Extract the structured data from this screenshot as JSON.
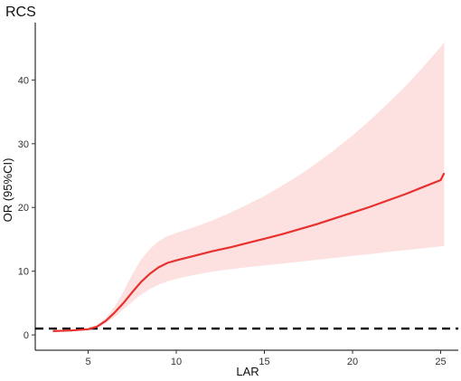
{
  "chart_data": {
    "type": "line",
    "title": "RCS",
    "xlabel": "LAR",
    "ylabel": "OR (95%CI)",
    "xlim": [
      2,
      26
    ],
    "ylim": [
      -2.4,
      49
    ],
    "x_ticks": [
      5,
      10,
      15,
      20,
      25
    ],
    "y_ticks": [
      0,
      10,
      20,
      30,
      40
    ],
    "grid": false,
    "legend": "none",
    "reference_line": {
      "y": 1,
      "style": "dashed",
      "color": "#000000"
    },
    "series": [
      {
        "type": "line",
        "color": "#e8312e",
        "x": [
          3,
          4,
          5,
          5.5,
          6,
          6.5,
          7,
          7.5,
          8,
          8.5,
          9,
          9.5,
          10,
          11,
          12,
          13,
          14,
          15,
          16,
          17,
          18,
          19,
          20,
          21,
          22,
          23,
          24,
          25,
          25.2
        ],
        "y": [
          0.6,
          0.7,
          0.9,
          1.3,
          2.2,
          3.5,
          5.0,
          6.7,
          8.3,
          9.6,
          10.6,
          11.3,
          11.7,
          12.4,
          13.1,
          13.7,
          14.4,
          15.1,
          15.8,
          16.6,
          17.4,
          18.3,
          19.2,
          20.1,
          21.1,
          22.1,
          23.2,
          24.3,
          25.4
        ]
      },
      {
        "type": "band",
        "color": "#fde0e0",
        "x": [
          3,
          4,
          5,
          5.5,
          6,
          6.5,
          7,
          7.5,
          8,
          8.5,
          9,
          9.5,
          10,
          11,
          12,
          13,
          14,
          15,
          16,
          17,
          18,
          19,
          20,
          21,
          22,
          23,
          24,
          25,
          25.2
        ],
        "lower": [
          0.5,
          0.6,
          0.8,
          1.1,
          1.8,
          2.8,
          4.0,
          5.2,
          6.3,
          7.2,
          7.9,
          8.4,
          8.8,
          9.4,
          9.9,
          10.3,
          10.6,
          10.9,
          11.2,
          11.5,
          11.8,
          12.1,
          12.4,
          12.7,
          13.0,
          13.3,
          13.6,
          13.9,
          14.0
        ],
        "upper": [
          0.7,
          0.8,
          1.1,
          1.5,
          2.7,
          4.4,
          6.8,
          9.5,
          11.8,
          13.5,
          14.7,
          15.5,
          16.0,
          16.9,
          17.9,
          19.1,
          20.4,
          21.8,
          23.4,
          25.1,
          27.0,
          29.1,
          31.3,
          33.7,
          36.3,
          39.0,
          42.0,
          45.2,
          46.0
        ]
      }
    ]
  }
}
